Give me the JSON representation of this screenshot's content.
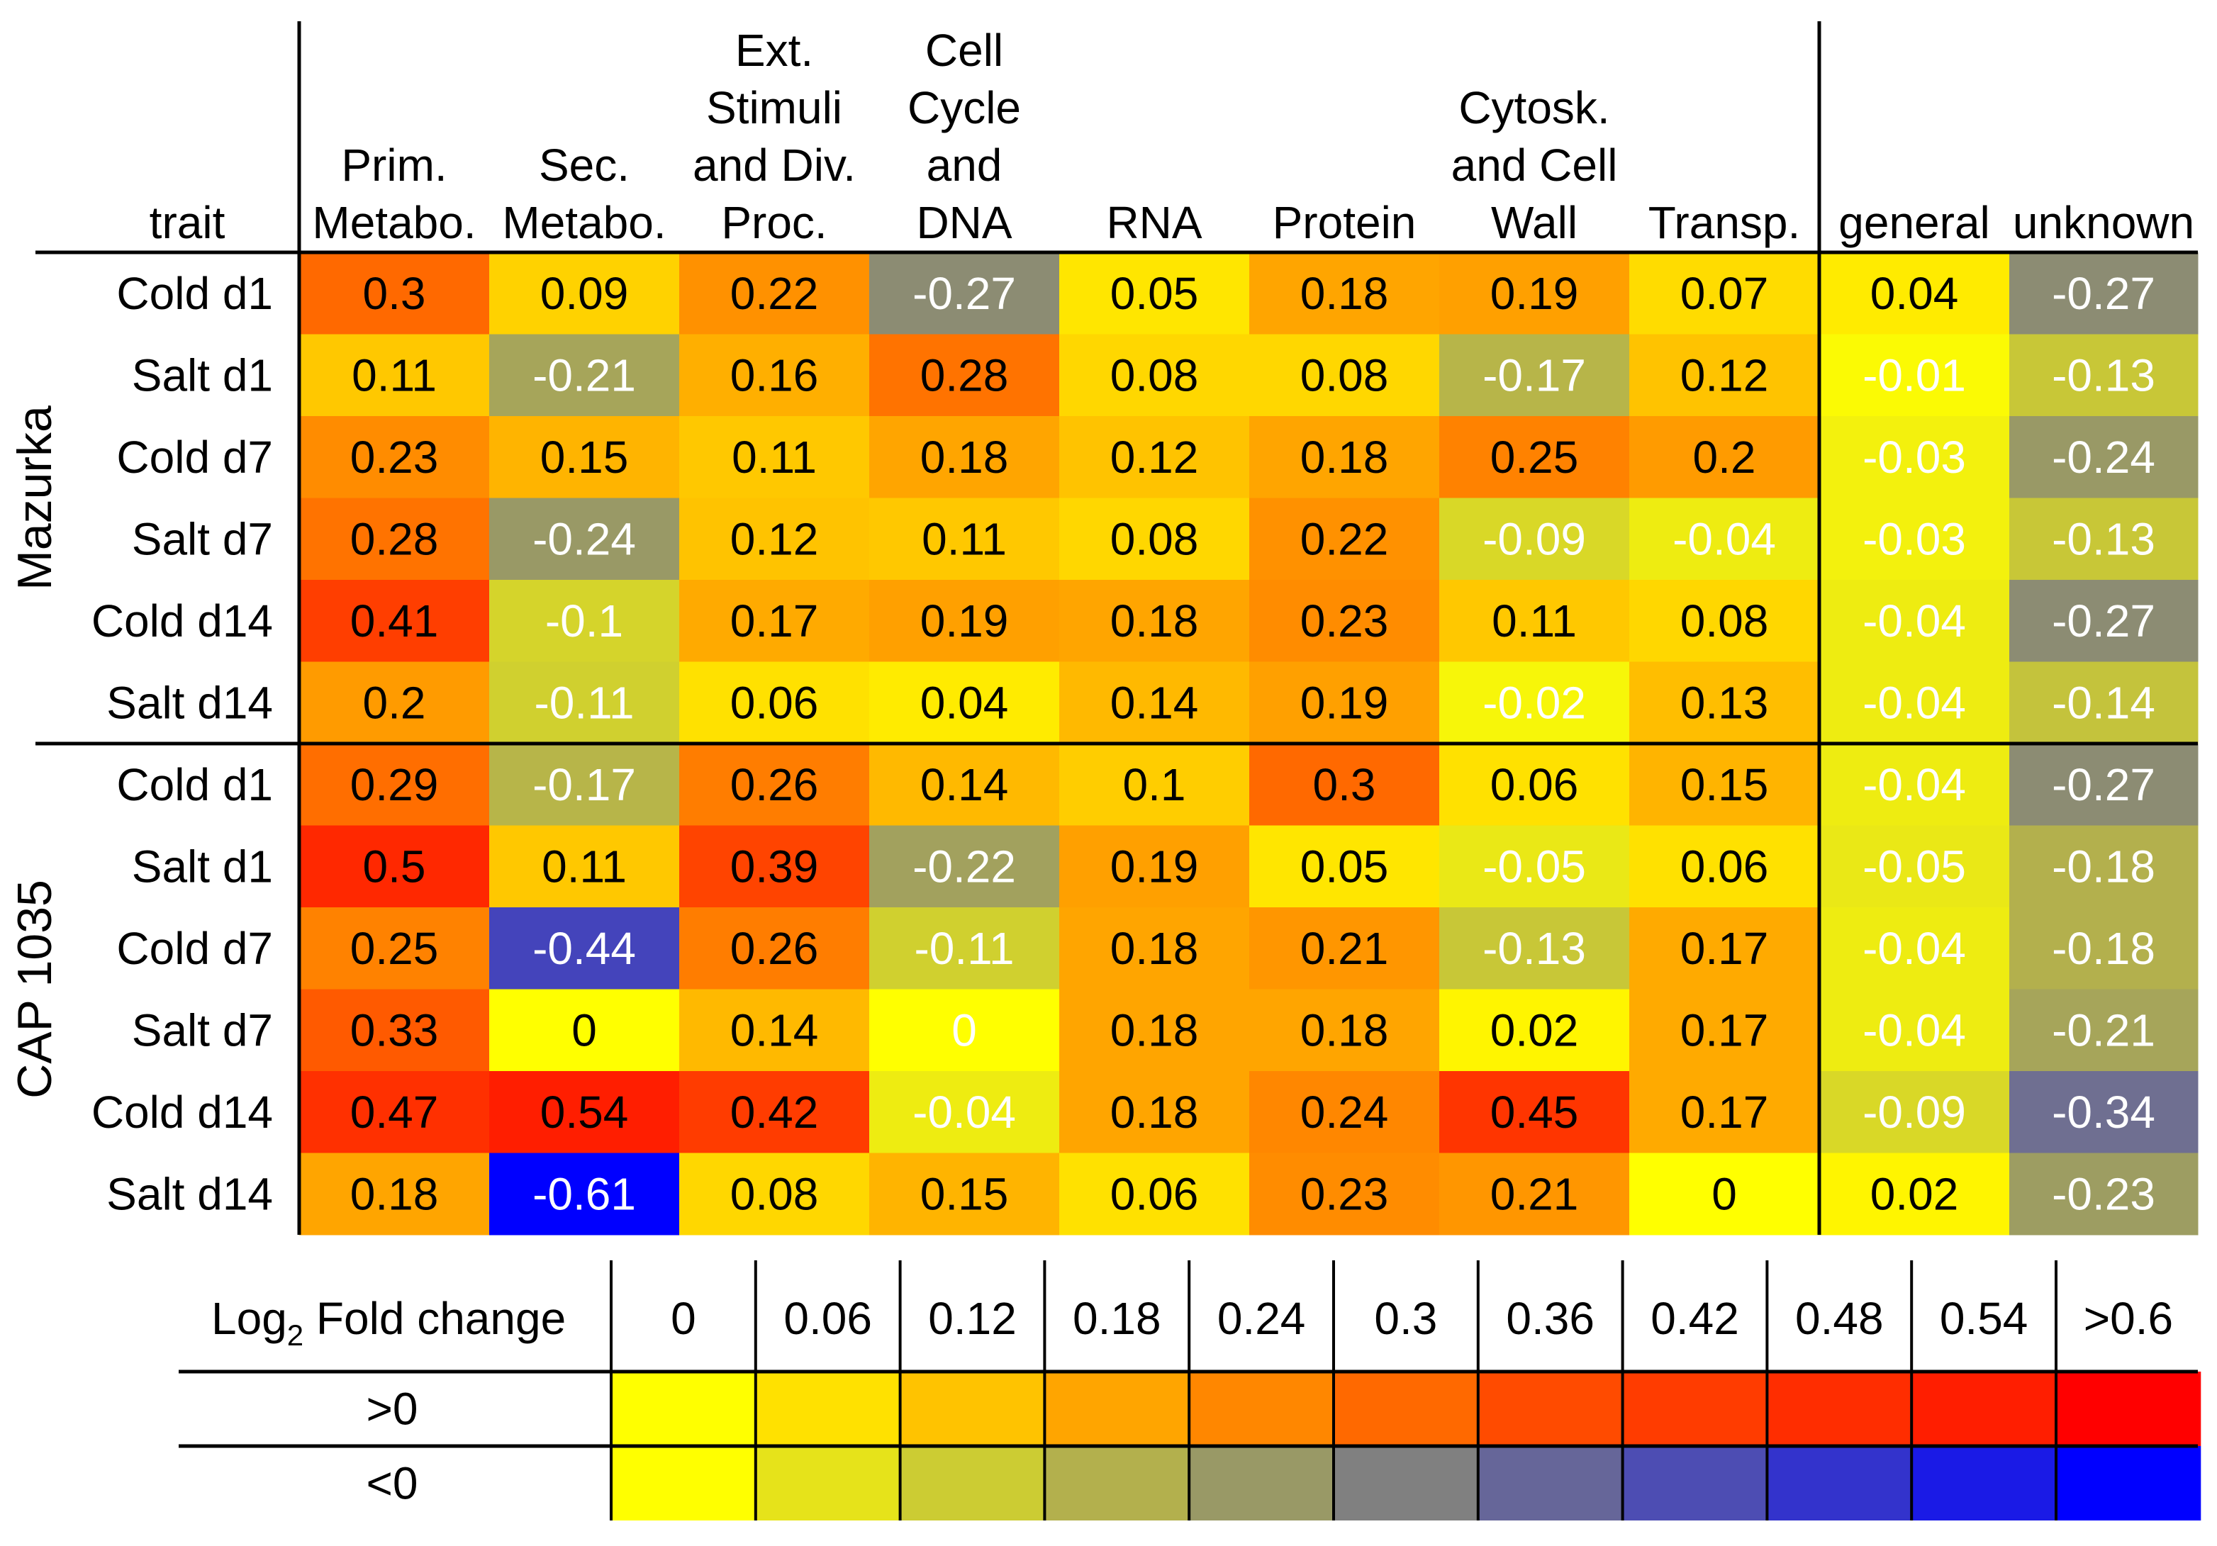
{
  "chart_data": {
    "type": "heatmap",
    "title": "",
    "trait_label": "trait",
    "columns": [
      {
        "lines": [
          "Prim.",
          "Metabo."
        ]
      },
      {
        "lines": [
          "Sec.",
          "Metabo."
        ]
      },
      {
        "lines": [
          "Ext.",
          "Stimuli",
          "and Div.",
          "Proc."
        ]
      },
      {
        "lines": [
          "Cell",
          "Cycle",
          "and",
          "DNA"
        ]
      },
      {
        "lines": [
          "RNA"
        ]
      },
      {
        "lines": [
          "Protein"
        ]
      },
      {
        "lines": [
          "Cytosk.",
          "and Cell",
          "Wall"
        ]
      },
      {
        "lines": [
          "Transp."
        ]
      },
      {
        "lines": [
          "general"
        ]
      },
      {
        "lines": [
          "unknown"
        ]
      }
    ],
    "groups": [
      {
        "name": "Mazurka",
        "rows": [
          {
            "label": "Cold d1",
            "values": [
              0.3,
              0.09,
              0.22,
              -0.27,
              0.05,
              0.18,
              0.19,
              0.07,
              0.04,
              -0.27
            ]
          },
          {
            "label": "Salt d1",
            "values": [
              0.11,
              -0.21,
              0.16,
              0.28,
              0.08,
              0.08,
              -0.17,
              0.12,
              -0.01,
              -0.13
            ]
          },
          {
            "label": "Cold d7",
            "values": [
              0.23,
              0.15,
              0.11,
              0.18,
              0.12,
              0.18,
              0.25,
              0.2,
              -0.03,
              -0.24
            ]
          },
          {
            "label": "Salt d7",
            "values": [
              0.28,
              -0.24,
              0.12,
              0.11,
              0.08,
              0.22,
              -0.09,
              -0.04,
              -0.03,
              -0.13
            ]
          },
          {
            "label": "Cold d14",
            "values": [
              0.41,
              -0.1,
              0.17,
              0.19,
              0.18,
              0.23,
              0.11,
              0.08,
              -0.04,
              -0.27
            ]
          },
          {
            "label": "Salt d14",
            "values": [
              0.2,
              -0.11,
              0.06,
              0.04,
              0.14,
              0.19,
              -0.02,
              0.13,
              -0.04,
              -0.14
            ]
          }
        ]
      },
      {
        "name": "CAP 1035",
        "rows": [
          {
            "label": "Cold d1",
            "values": [
              0.29,
              -0.17,
              0.26,
              0.14,
              0.1,
              0.3,
              0.06,
              0.15,
              -0.04,
              -0.27
            ]
          },
          {
            "label": "Salt d1",
            "values": [
              0.5,
              0.11,
              0.39,
              -0.22,
              0.19,
              0.05,
              -0.05,
              0.06,
              -0.05,
              -0.18
            ]
          },
          {
            "label": "Cold d7",
            "values": [
              0.25,
              -0.44,
              0.26,
              -0.11,
              0.18,
              0.21,
              -0.13,
              0.17,
              -0.04,
              -0.18
            ]
          },
          {
            "label": "Salt d7",
            "values": [
              0.33,
              0,
              0.14,
              0,
              0.18,
              0.18,
              0.02,
              0.17,
              -0.04,
              -0.21
            ]
          },
          {
            "label": "Cold d14",
            "values": [
              0.47,
              0.54,
              0.42,
              -0.04,
              0.18,
              0.24,
              0.45,
              0.17,
              -0.09,
              -0.34
            ]
          },
          {
            "label": "Salt d14",
            "values": [
              0.18,
              -0.61,
              0.08,
              0.15,
              0.06,
              0.23,
              0.21,
              0,
              0.02,
              -0.23
            ]
          }
        ]
      }
    ],
    "legend": {
      "title_main": "Log",
      "title_sub": "2",
      "title_rest": " Fold change",
      "ticks": [
        "0",
        "0.06",
        "0.12",
        "0.18",
        "0.24",
        "0.3",
        "0.36",
        "0.42",
        "0.48",
        "0.54",
        ">0.6"
      ],
      "positive_label": ">0",
      "negative_label": "<0",
      "positive_colors": [
        "#ffff00",
        "#ffe100",
        "#ffc300",
        "#ffa500",
        "#ff8700",
        "#ff6900",
        "#ff4b00",
        "#ff3c00",
        "#ff2d00",
        "#ff1e00",
        "#ff0000"
      ],
      "negative_colors": [
        "#ffff00",
        "#e6e31a",
        "#cccc33",
        "#b3b04d",
        "#999966",
        "#808080",
        "#666699",
        "#4d4db3",
        "#3333cc",
        "#1a1ae6",
        "#0000ff"
      ]
    },
    "text_color_rule": {
      "positive_or_large": "#000000",
      "negative": "#ffffff"
    }
  }
}
